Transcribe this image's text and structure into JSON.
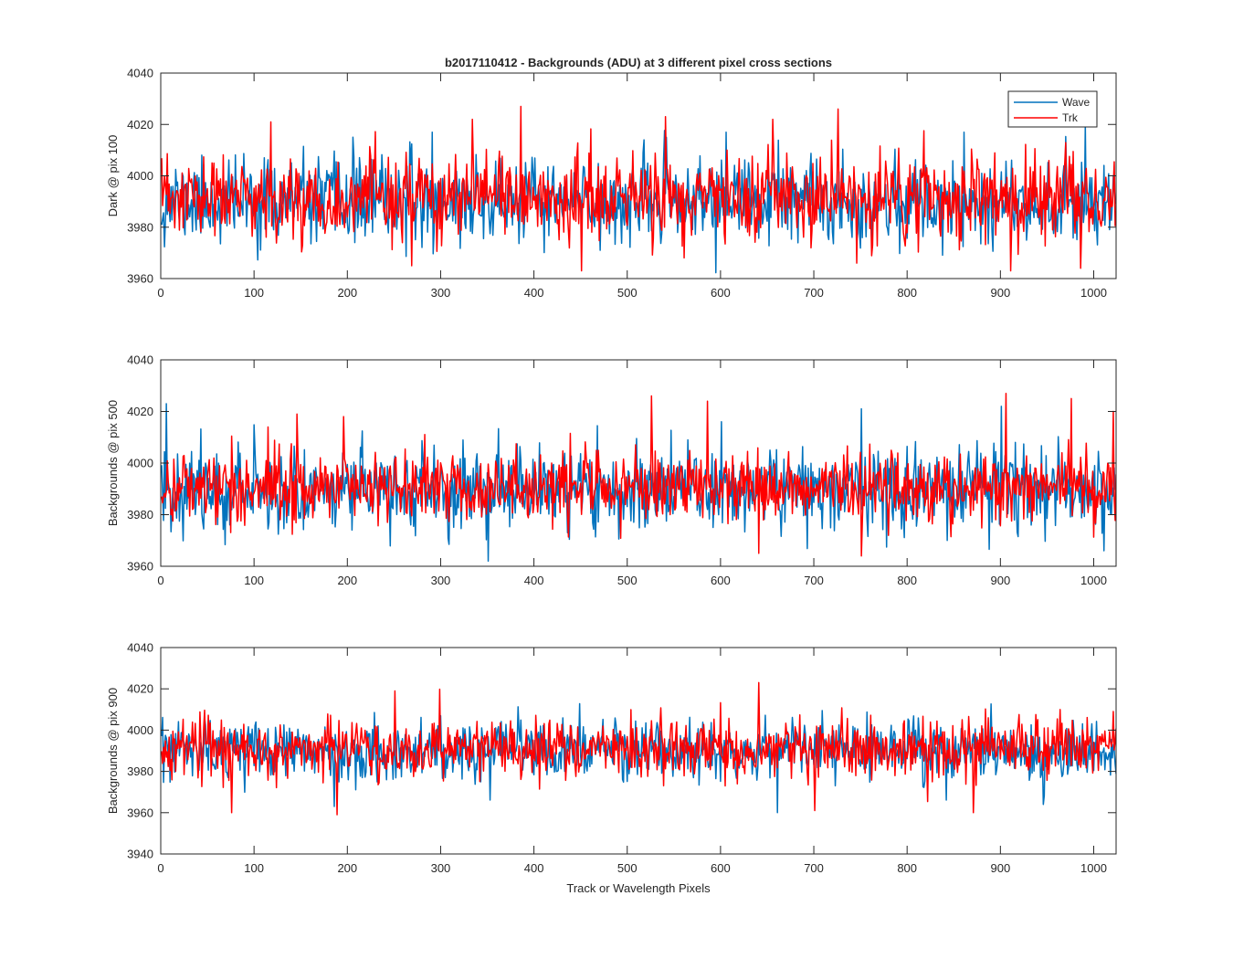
{
  "title": "b2017110412 - Backgrounds (ADU) at 3 different pixel cross sections",
  "legend": {
    "placement": "top-right",
    "entries": [
      {
        "name": "Wave",
        "color": "#0072BD"
      },
      {
        "name": "Trk",
        "color": "#FF0000"
      }
    ]
  },
  "chart_data": [
    {
      "type": "line",
      "title": "b2017110412 - Backgrounds (ADU) at 3 different pixel cross sections",
      "xlabel": "",
      "ylabel": "Dark @ pix 100",
      "xlim": [
        0,
        1024
      ],
      "ylim": [
        3960,
        4040
      ],
      "xticks": [
        "0",
        "100",
        "200",
        "300",
        "400",
        "500",
        "600",
        "700",
        "800",
        "900",
        "1000"
      ],
      "yticks": [
        "3960",
        "3980",
        "4000",
        "4020",
        "4040"
      ],
      "grid": false,
      "series": [
        {
          "name": "Wave",
          "color": "#0072BD",
          "mean": 3990,
          "sd": 8,
          "seed": 11,
          "spikes": [
            [
              110,
              4007
            ],
            [
              205,
              4015
            ],
            [
              290,
              4017
            ],
            [
              470,
              3971
            ],
            [
              605,
              4017
            ],
            [
              860,
              4017
            ],
            [
              990,
              4020
            ]
          ]
        },
        {
          "name": "Trk",
          "color": "#FF0000",
          "mean": 3991,
          "sd": 8,
          "seed": 23,
          "spikes": [
            [
              117,
              4021
            ],
            [
              268,
              3965
            ],
            [
              333,
              4022
            ],
            [
              385,
              4027
            ],
            [
              450,
              3963
            ],
            [
              540,
              4023
            ],
            [
              655,
              4022
            ],
            [
              725,
              4026
            ],
            [
              745,
              3966
            ],
            [
              910,
              3963
            ],
            [
              985,
              3964
            ]
          ]
        }
      ]
    },
    {
      "type": "line",
      "title": "",
      "xlabel": "",
      "ylabel": "Backgrounds @ pix 500",
      "xlim": [
        0,
        1024
      ],
      "ylim": [
        3960,
        4040
      ],
      "xticks": [
        "0",
        "100",
        "200",
        "300",
        "400",
        "500",
        "600",
        "700",
        "800",
        "900",
        "1000"
      ],
      "yticks": [
        "3960",
        "3980",
        "4000",
        "4020",
        "4040"
      ],
      "grid": false,
      "series": [
        {
          "name": "Wave",
          "color": "#0072BD",
          "mean": 3990,
          "sd": 8,
          "seed": 37,
          "spikes": [
            [
              5,
              4023
            ],
            [
              350,
              3962
            ],
            [
              600,
              4016
            ],
            [
              750,
              4021
            ],
            [
              900,
              4022
            ],
            [
              1010,
              3966
            ]
          ]
        },
        {
          "name": "Trk",
          "color": "#FF0000",
          "mean": 3991,
          "sd": 7,
          "seed": 41,
          "spikes": [
            [
              145,
              4019
            ],
            [
              195,
              4018
            ],
            [
              525,
              4026
            ],
            [
              585,
              4024
            ],
            [
              640,
              3965
            ],
            [
              750,
              3964
            ],
            [
              905,
              4027
            ],
            [
              975,
              4025
            ],
            [
              1020,
              4020
            ]
          ]
        }
      ]
    },
    {
      "type": "line",
      "title": "",
      "xlabel": "Track or Wavelength Pixels",
      "ylabel": "Backgrounds @ pix 900",
      "xlim": [
        0,
        1024
      ],
      "ylim": [
        3940,
        4040
      ],
      "xticks": [
        "0",
        "100",
        "200",
        "300",
        "400",
        "500",
        "600",
        "700",
        "800",
        "900",
        "1000"
      ],
      "yticks": [
        "3940",
        "3960",
        "3980",
        "4000",
        "4020",
        "4040"
      ],
      "grid": false,
      "series": [
        {
          "name": "Wave",
          "color": "#0072BD",
          "mean": 3990,
          "sd": 7,
          "seed": 53,
          "spikes": [
            [
              185,
              3963
            ],
            [
              660,
              3960
            ],
            [
              945,
              3964
            ]
          ]
        },
        {
          "name": "Trk",
          "color": "#FF0000",
          "mean": 3991,
          "sd": 7,
          "seed": 67,
          "spikes": [
            [
              75,
              3960
            ],
            [
              188,
              3959
            ],
            [
              250,
              4019
            ],
            [
              640,
              4023
            ],
            [
              700,
              3961
            ],
            [
              870,
              3960
            ],
            [
              1020,
              4009
            ]
          ]
        }
      ]
    }
  ]
}
